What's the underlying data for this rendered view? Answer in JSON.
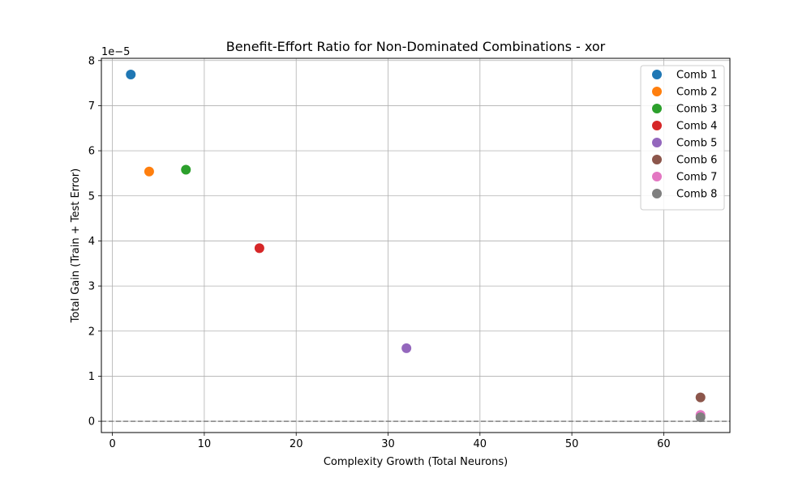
{
  "chart_data": {
    "type": "scatter",
    "title": "Benefit-Effort Ratio for Non-Dominated Combinations - xor",
    "xlabel": "Complexity Growth (Total Neurons)",
    "ylabel": "Total Gain (Train + Test Error)",
    "y_scale_label": "1e−5",
    "xlim": [
      -1.2,
      67.2
    ],
    "ylim": [
      -0.25,
      8.05
    ],
    "x_ticks": [
      0,
      10,
      20,
      30,
      40,
      50,
      60
    ],
    "y_ticks": [
      0,
      1,
      2,
      3,
      4,
      5,
      6,
      7,
      8
    ],
    "grid": true,
    "legend_position": "top-right",
    "reference_line": {
      "y": 0,
      "style": "dashed",
      "color": "#808080"
    },
    "series": [
      {
        "name": "Comb 1",
        "color": "#1f77b4",
        "x": [
          2
        ],
        "y": [
          7.69
        ]
      },
      {
        "name": "Comb 2",
        "color": "#ff7f0e",
        "x": [
          4
        ],
        "y": [
          5.54
        ]
      },
      {
        "name": "Comb 3",
        "color": "#2ca02c",
        "x": [
          8
        ],
        "y": [
          5.58
        ]
      },
      {
        "name": "Comb 4",
        "color": "#d62728",
        "x": [
          16
        ],
        "y": [
          3.84
        ]
      },
      {
        "name": "Comb 5",
        "color": "#9467bd",
        "x": [
          32
        ],
        "y": [
          1.62
        ]
      },
      {
        "name": "Comb 6",
        "color": "#8c564b",
        "x": [
          64
        ],
        "y": [
          0.53
        ]
      },
      {
        "name": "Comb 7",
        "color": "#e377c2",
        "x": [
          64
        ],
        "y": [
          0.14
        ]
      },
      {
        "name": "Comb 8",
        "color": "#7f7f7f",
        "x": [
          64
        ],
        "y": [
          0.09
        ]
      }
    ]
  }
}
